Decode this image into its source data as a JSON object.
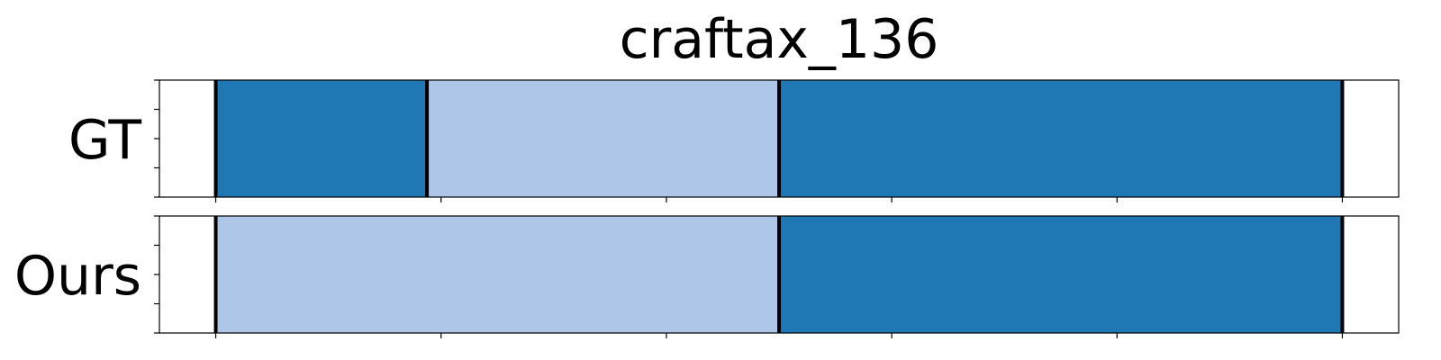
{
  "chart_data": {
    "type": "bar",
    "title": "craftax_136",
    "xlim": [
      -1,
      21
    ],
    "x_ticks": [
      0,
      4,
      8,
      12,
      16,
      20
    ],
    "colors": {
      "dark": "#1f77b4",
      "light": "#aec7e8",
      "boundary": "#000000"
    },
    "rows": [
      {
        "label": "GT",
        "segments": [
          {
            "start": 0,
            "end": 3.75,
            "color": "dark"
          },
          {
            "start": 3.75,
            "end": 10,
            "color": "light"
          },
          {
            "start": 10,
            "end": 20,
            "color": "dark"
          }
        ],
        "boundaries": [
          0,
          3.75,
          10,
          20
        ]
      },
      {
        "label": "Ours",
        "segments": [
          {
            "start": 0,
            "end": 10,
            "color": "light"
          },
          {
            "start": 10,
            "end": 20,
            "color": "dark"
          }
        ],
        "boundaries": [
          0,
          10,
          20
        ]
      }
    ]
  }
}
